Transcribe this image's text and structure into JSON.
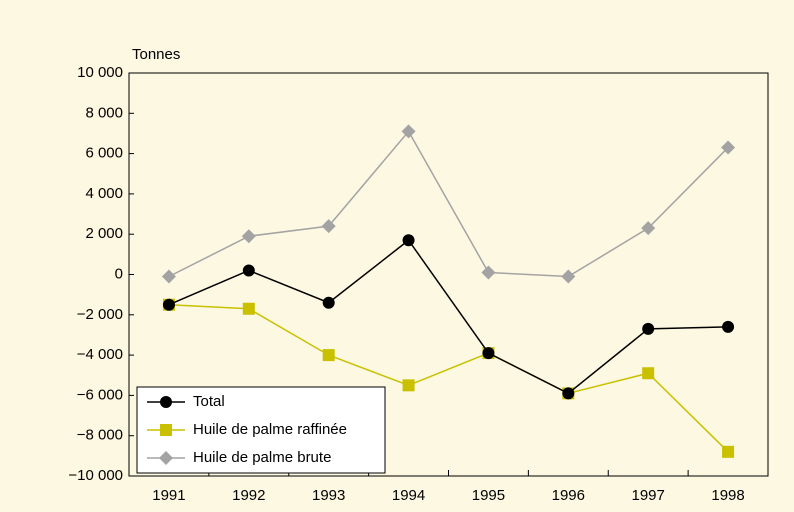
{
  "chart_data": {
    "type": "line",
    "y_axis_label": "Tonnes",
    "categories": [
      "1991",
      "1992",
      "1993",
      "1994",
      "1995",
      "1996",
      "1997",
      "1998"
    ],
    "series": [
      {
        "name": "Total",
        "color": "#000000",
        "marker": "circle",
        "values": [
          -1500,
          200,
          -1400,
          1700,
          -3900,
          -5900,
          -2700,
          -2600
        ]
      },
      {
        "name": "Huile de palme raffinée",
        "color": "#c9c000",
        "marker": "square",
        "values": [
          -1500,
          -1700,
          -4000,
          -5500,
          -3900,
          -5900,
          -4900,
          -8800
        ]
      },
      {
        "name": "Huile de palme brute",
        "color": "#a3a3a3",
        "marker": "diamond",
        "values": [
          -100,
          1900,
          2400,
          7100,
          100,
          -100,
          2300,
          6300
        ]
      }
    ],
    "ylim": [
      -10000,
      10000
    ],
    "yticks": [
      {
        "value": -10000,
        "label": "−10 000"
      },
      {
        "value": -8000,
        "label": "−8 000"
      },
      {
        "value": -6000,
        "label": "−6 000"
      },
      {
        "value": -4000,
        "label": "−4 000"
      },
      {
        "value": -2000,
        "label": "−2 000"
      },
      0,
      {
        "value": 2000,
        "label": "2 000"
      },
      {
        "value": 4000,
        "label": "4 000"
      },
      {
        "value": 6000,
        "label": "6 000"
      },
      {
        "value": 8000,
        "label": "8 000"
      },
      {
        "value": 10000,
        "label": "10 000"
      }
    ],
    "legend": "lower left"
  }
}
